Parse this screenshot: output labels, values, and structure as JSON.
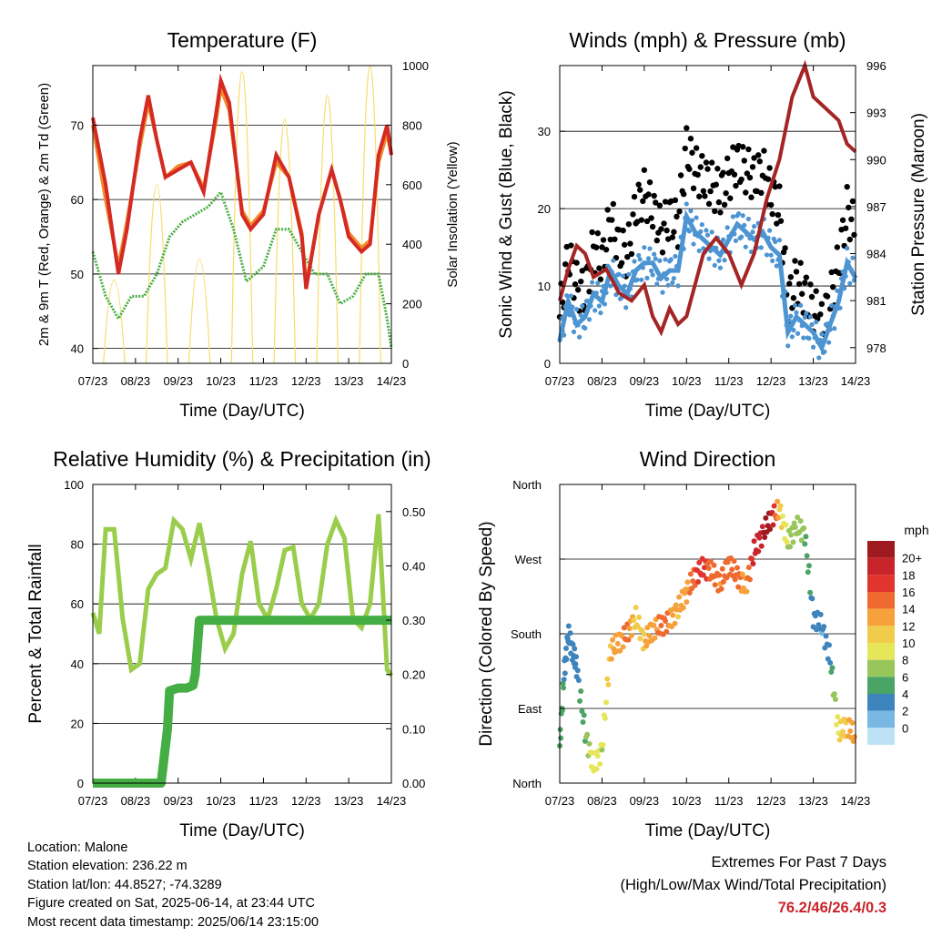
{
  "colors": {
    "temp2m": "#d42a24",
    "temp9m": "#f08a2a",
    "dewpoint": "#4aae45",
    "solar": "#f7dc6b",
    "gust": "#000000",
    "wind": "#4d94d2",
    "pressure": "#a52424",
    "rh": "#9acd4c",
    "precip": "#44ae44",
    "extremes": "#c8242b"
  },
  "x_ticks": [
    "07/23",
    "08/23",
    "09/23",
    "10/23",
    "11/23",
    "12/23",
    "13/23",
    "14/23"
  ],
  "chart_data": [
    {
      "type": "line",
      "title": "Temperature (F)",
      "xlabel": "Time (Day/UTC)",
      "ylabel": "2m & 9m T (Red, Orange) & 2m Td (Green)",
      "ylabel_right": "Solar Insolation (Yellow)",
      "ylim": [
        38,
        78
      ],
      "yticks": [
        "40",
        "50",
        "60",
        "70"
      ],
      "ylim_right": [
        0,
        1000
      ],
      "yticks_right": [
        "0",
        "200",
        "400",
        "600",
        "800",
        "1000"
      ],
      "grid": true,
      "series": [
        {
          "key": "t2m",
          "x": [
            0,
            0.3,
            0.6,
            0.8,
            1.1,
            1.3,
            1.5,
            1.7,
            2,
            2.3,
            2.6,
            2.9,
            3,
            3.2,
            3.4,
            3.5,
            3.7,
            4,
            4.3,
            4.6,
            4.9,
            5,
            5.3,
            5.6,
            5.8,
            6,
            6.3,
            6.5,
            6.7,
            6.9,
            7
          ],
          "y": [
            71,
            62,
            50,
            56,
            68,
            74,
            68,
            63,
            64,
            65,
            61,
            72,
            76,
            73,
            63,
            58,
            56,
            58,
            66,
            63,
            55,
            48,
            58,
            64,
            60,
            55,
            53,
            54,
            66,
            70,
            66
          ]
        },
        {
          "key": "t9m",
          "x": [
            0,
            0.3,
            0.6,
            0.8,
            1.1,
            1.3,
            1.5,
            1.7,
            2,
            2.3,
            2.6,
            2.9,
            3,
            3.2,
            3.4,
            3.5,
            3.7,
            4,
            4.3,
            4.6,
            4.9,
            5,
            5.3,
            5.6,
            5.8,
            6,
            6.3,
            6.5,
            6.7,
            6.9,
            7
          ],
          "y": [
            70,
            60,
            51,
            57,
            67,
            73,
            68,
            63,
            64.5,
            65,
            61.5,
            71,
            75,
            72,
            63,
            58.5,
            56.5,
            58.5,
            65,
            63,
            55.5,
            48.5,
            58,
            64,
            60,
            55.5,
            53.5,
            54.5,
            65,
            69,
            66
          ]
        },
        {
          "key": "td",
          "x": [
            0,
            0.3,
            0.6,
            0.9,
            1.2,
            1.5,
            1.8,
            2.1,
            2.4,
            2.7,
            3,
            3.3,
            3.6,
            4,
            4.3,
            4.6,
            4.9,
            5.2,
            5.5,
            5.8,
            6.1,
            6.4,
            6.7,
            6.9,
            7
          ],
          "y": [
            53,
            47,
            44,
            47,
            47,
            50,
            55,
            57,
            58,
            59,
            61,
            56,
            49,
            51,
            56,
            56,
            53,
            50,
            50,
            46,
            47,
            50,
            50,
            44,
            40
          ]
        },
        {
          "key": "solar",
          "x": [
            0.25,
            0.5,
            0.75,
            1.25,
            1.5,
            1.75,
            2.25,
            2.5,
            2.75,
            3.25,
            3.5,
            3.75,
            4.25,
            4.5,
            4.75,
            5.25,
            5.5,
            5.75,
            6.25,
            6.5,
            6.75
          ],
          "y": [
            0,
            280,
            0,
            0,
            600,
            0,
            0,
            350,
            0,
            0,
            980,
            0,
            0,
            820,
            0,
            0,
            900,
            0,
            0,
            1000,
            0
          ]
        }
      ]
    },
    {
      "type": "line",
      "title": "Winds (mph) & Pressure (mb)",
      "xlabel": "Time (Day/UTC)",
      "ylabel": "Sonic Wind & Gust (Blue, Black)",
      "ylabel_right": "Station Pressure (Maroon)",
      "ylim": [
        0,
        38.5
      ],
      "yticks": [
        "0",
        "10",
        "20",
        "30"
      ],
      "ylim_right": [
        977,
        996
      ],
      "yticks_right": [
        "978",
        "981",
        "984",
        "987",
        "990",
        "993",
        "996"
      ],
      "grid": true,
      "series": [
        {
          "key": "gust",
          "x": [
            0,
            0.2,
            0.4,
            0.6,
            0.8,
            1,
            1.2,
            1.4,
            1.6,
            1.8,
            2,
            2.2,
            2.4,
            2.6,
            2.8,
            3,
            3.2,
            3.4,
            3.6,
            3.8,
            4,
            4.2,
            4.4,
            4.6,
            4.8,
            5,
            5.2,
            5.4,
            5.6,
            5.8,
            6,
            6.2,
            6.4,
            6.6,
            6.8,
            7
          ],
          "y": [
            6,
            14,
            10,
            9,
            15,
            13,
            19,
            15,
            14,
            20,
            22,
            20,
            17,
            19,
            18,
            28,
            25,
            24,
            23,
            22,
            24,
            26,
            25,
            24,
            25,
            22,
            20,
            8,
            11,
            9,
            7,
            5,
            8,
            13,
            20,
            17
          ]
        },
        {
          "key": "wind",
          "x": [
            0,
            0.2,
            0.4,
            0.6,
            0.8,
            1,
            1.2,
            1.4,
            1.6,
            1.8,
            2,
            2.2,
            2.4,
            2.6,
            2.8,
            3,
            3.2,
            3.4,
            3.6,
            3.8,
            4,
            4.2,
            4.4,
            4.6,
            4.8,
            5,
            5.2,
            5.4,
            5.6,
            5.8,
            6,
            6.2,
            6.4,
            6.6,
            6.8,
            7
          ],
          "y": [
            3,
            8,
            5,
            6,
            9,
            8,
            12,
            10,
            9,
            12,
            13,
            13,
            11,
            12,
            12,
            19,
            17,
            16,
            15,
            14,
            16,
            18,
            17,
            16,
            17,
            15,
            14,
            4,
            6,
            5,
            4,
            2,
            5,
            8,
            13,
            11
          ]
        },
        {
          "key": "pressure",
          "x": [
            0,
            0.2,
            0.4,
            0.6,
            0.8,
            1.1,
            1.4,
            1.7,
            2,
            2.2,
            2.4,
            2.6,
            2.8,
            3,
            3.2,
            3.4,
            3.7,
            4,
            4.3,
            4.6,
            4.9,
            5.2,
            5.5,
            5.8,
            6,
            6.2,
            6.4,
            6.6,
            6.8,
            7
          ],
          "y": [
            981,
            983,
            984.5,
            984,
            982.5,
            983,
            981.5,
            981,
            982,
            980,
            979,
            980.5,
            979.5,
            980,
            982,
            984,
            985,
            984,
            982,
            984,
            987.5,
            990,
            994,
            996,
            994,
            993.5,
            993,
            992.5,
            991,
            990.5
          ]
        }
      ]
    },
    {
      "type": "line",
      "title": "Relative Humidity (%) & Precipitation (in)",
      "xlabel": "Time (Day/UTC)",
      "ylabel": "Percent & Total Rainfall",
      "ylim": [
        0,
        100
      ],
      "yticks": [
        "0",
        "20",
        "40",
        "60",
        "80",
        "100"
      ],
      "ylim_right": [
        0,
        0.55
      ],
      "yticks_right": [
        "0.00",
        "0.10",
        "0.20",
        "0.30",
        "0.40",
        "0.50"
      ],
      "grid": true,
      "series": [
        {
          "key": "rh",
          "x": [
            0,
            0.15,
            0.3,
            0.5,
            0.7,
            0.9,
            1.1,
            1.3,
            1.5,
            1.7,
            1.9,
            2.1,
            2.3,
            2.5,
            2.7,
            2.9,
            3.1,
            3.3,
            3.5,
            3.7,
            3.9,
            4.1,
            4.3,
            4.5,
            4.7,
            4.9,
            5.1,
            5.3,
            5.5,
            5.7,
            5.9,
            6.1,
            6.3,
            6.5,
            6.7,
            6.9,
            7
          ],
          "y": [
            57,
            50,
            85,
            85,
            55,
            38,
            40,
            65,
            70,
            72,
            88,
            85,
            75,
            87,
            72,
            55,
            45,
            50,
            70,
            81,
            60,
            55,
            65,
            78,
            79,
            60,
            55,
            60,
            80,
            88,
            82,
            55,
            52,
            60,
            90,
            38,
            36
          ]
        },
        {
          "key": "precip",
          "x": [
            0,
            1.2,
            1.6,
            1.75,
            1.8,
            2,
            2.2,
            2.35,
            2.4,
            2.45,
            2.5,
            3,
            4,
            5,
            6,
            7
          ],
          "y": [
            0,
            0,
            0,
            0.1,
            0.17,
            0.175,
            0.175,
            0.18,
            0.2,
            0.25,
            0.3,
            0.3,
            0.3,
            0.3,
            0.3,
            0.3
          ]
        }
      ]
    },
    {
      "type": "scatter",
      "title": "Wind Direction",
      "xlabel": "Time (Day/UTC)",
      "ylabel": "Direction (Colored By Speed)",
      "ylim": [
        0,
        360
      ],
      "yticks": [
        "North",
        "East",
        "South",
        "West",
        "North"
      ],
      "legend_title": "mph",
      "legend_labels": [
        "20+",
        "18",
        "16",
        "14",
        "12",
        "10",
        "8",
        "6",
        "4",
        "2",
        "0"
      ],
      "legend_colors": [
        "#9e1a1e",
        "#c8242b",
        "#e0352e",
        "#ef6a2e",
        "#f6a13a",
        "#f1cc4c",
        "#e6e65a",
        "#97c65a",
        "#4aa465",
        "#3e84bd",
        "#79b8e3",
        "#bde2f5"
      ],
      "legend_placement": "right",
      "series": [
        {
          "key": "direction",
          "x": [
            0,
            0.1,
            0.2,
            0.3,
            0.4,
            0.6,
            0.8,
            1.0,
            1.2,
            1.4,
            1.6,
            1.8,
            2.0,
            2.2,
            2.4,
            2.6,
            2.8,
            3.0,
            3.2,
            3.4,
            3.6,
            3.8,
            4.0,
            4.2,
            4.4,
            4.6,
            4.8,
            5.0,
            5.2,
            5.4,
            5.6,
            5.8,
            6.0,
            6.2,
            6.4,
            6.6,
            6.8,
            7
          ],
          "y": [
            45,
            130,
            180,
            160,
            140,
            60,
            20,
            40,
            160,
            170,
            180,
            200,
            170,
            185,
            190,
            195,
            210,
            230,
            250,
            260,
            255,
            240,
            265,
            250,
            235,
            280,
            300,
            320,
            330,
            290,
            310,
            300,
            200,
            190,
            150,
            60,
            70,
            55
          ],
          "speed": [
            6,
            5,
            4,
            5,
            4,
            7,
            11,
            9,
            13,
            14,
            16,
            12,
            13,
            14,
            16,
            15,
            13,
            14,
            17,
            18,
            16,
            15,
            17,
            16,
            14,
            20,
            21,
            22,
            12,
            9,
            8,
            7,
            4,
            3,
            5,
            11,
            13,
            14
          ]
        }
      ]
    }
  ],
  "footer": {
    "location": "Location: Malone",
    "elevation": "Station elevation: 236.22 m",
    "latlon": "Station lat/lon: 44.8527; -74.3289",
    "created": "Figure created on Sat, 2025-06-14, at 23:44 UTC",
    "recent": "Most recent data timestamp: 2025/06/14 23:15:00"
  },
  "extremes": {
    "title": "Extremes For Past 7 Days",
    "subtitle": "(High/Low/Max Wind/Total Precipitation)",
    "values": "76.2/46/26.4/0.3"
  }
}
